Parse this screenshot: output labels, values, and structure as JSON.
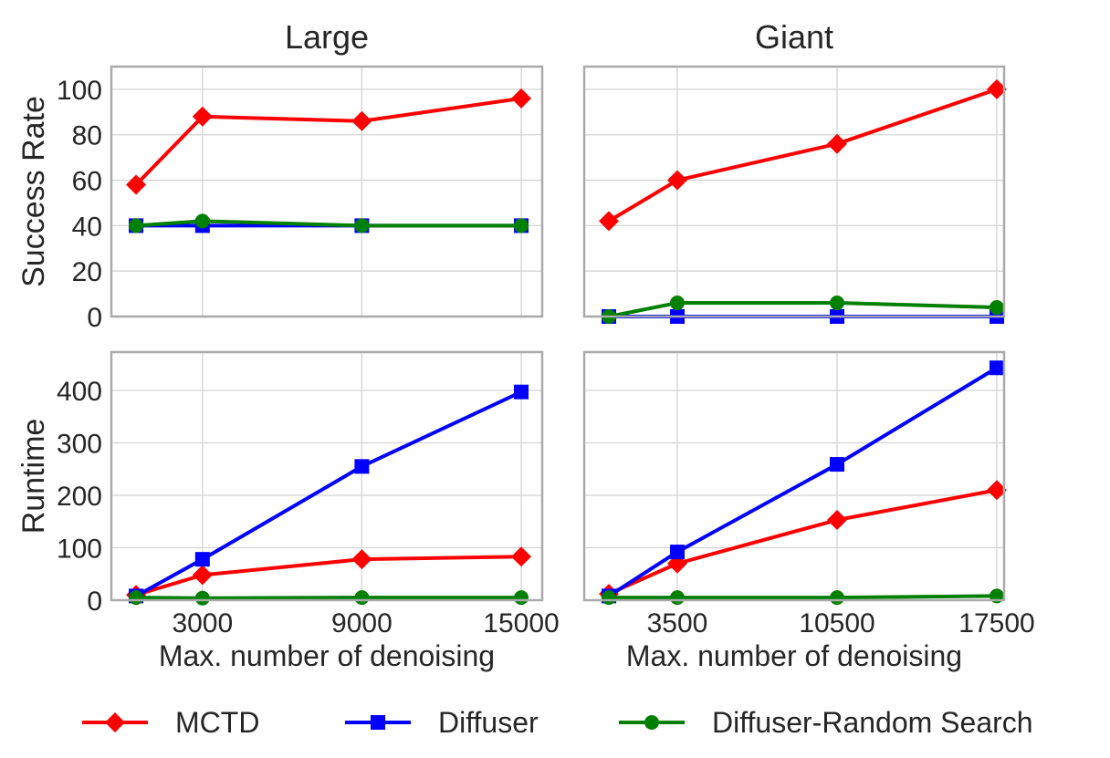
{
  "chart_data": [
    {
      "type": "line",
      "title": "Large",
      "ylabel": "Success Rate",
      "xlabel": "",
      "x": [
        500,
        3000,
        9000,
        15000
      ],
      "xticks": [
        "3000",
        "9000",
        "15000"
      ],
      "xtick_values": [
        3000,
        9000,
        15000
      ],
      "yticks": [
        "0",
        "20",
        "40",
        "60",
        "80",
        "100"
      ],
      "ylim": [
        0,
        110
      ],
      "xlim": [
        -430,
        15790
      ],
      "grid": true,
      "series": [
        {
          "name": "MCTD",
          "values": [
            58,
            88,
            86,
            96
          ]
        },
        {
          "name": "Diffuser",
          "values": [
            40,
            40,
            40,
            40
          ]
        },
        {
          "name": "Diffuser-Random Search",
          "values": [
            40,
            42,
            40,
            40
          ]
        }
      ]
    },
    {
      "type": "line",
      "title": "Giant",
      "ylabel": "",
      "xlabel": "",
      "x": [
        500,
        3500,
        10500,
        17500
      ],
      "xticks": [
        "3500",
        "10500",
        "17500"
      ],
      "xtick_values": [
        3500,
        10500,
        17500
      ],
      "yticks": [],
      "ylim": [
        0,
        110
      ],
      "xlim": [
        -580,
        17820
      ],
      "grid": true,
      "series": [
        {
          "name": "MCTD",
          "values": [
            42,
            60,
            76,
            100
          ]
        },
        {
          "name": "Diffuser",
          "values": [
            0,
            0,
            0,
            0
          ]
        },
        {
          "name": "Diffuser-Random Search",
          "values": [
            0,
            6,
            6,
            4
          ]
        }
      ]
    },
    {
      "type": "line",
      "title": "",
      "ylabel": "Runtime",
      "xlabel": "Max. number of denoising",
      "x": [
        500,
        3000,
        9000,
        15000
      ],
      "xticks": [
        "3000",
        "9000",
        "15000"
      ],
      "xtick_values": [
        3000,
        9000,
        15000
      ],
      "yticks": [
        "0",
        "100",
        "200",
        "300",
        "400"
      ],
      "ylim": [
        0,
        473
      ],
      "xlim": [
        -430,
        15790
      ],
      "grid": true,
      "series": [
        {
          "name": "MCTD",
          "values": [
            10,
            48,
            78,
            83
          ]
        },
        {
          "name": "Diffuser",
          "values": [
            8,
            78,
            255,
            397
          ]
        },
        {
          "name": "Diffuser-Random Search",
          "values": [
            5,
            4,
            5,
            5
          ]
        }
      ]
    },
    {
      "type": "line",
      "title": "",
      "ylabel": "",
      "xlabel": "Max. number of denoising",
      "x": [
        500,
        3500,
        10500,
        17500
      ],
      "xticks": [
        "3500",
        "10500",
        "17500"
      ],
      "xtick_values": [
        3500,
        10500,
        17500
      ],
      "yticks": [],
      "ylim": [
        0,
        473
      ],
      "xlim": [
        -580,
        17820
      ],
      "grid": true,
      "series": [
        {
          "name": "MCTD",
          "values": [
            12,
            70,
            153,
            210
          ]
        },
        {
          "name": "Diffuser",
          "values": [
            8,
            92,
            259,
            443
          ]
        },
        {
          "name": "Diffuser-Random Search",
          "values": [
            5,
            5,
            5,
            8
          ]
        }
      ]
    }
  ],
  "legend": {
    "placement": "bottom",
    "entries": [
      {
        "label": "MCTD",
        "color": "#ff0000",
        "marker": "diamond"
      },
      {
        "label": "Diffuser",
        "color": "#0000ff",
        "marker": "square"
      },
      {
        "label": "Diffuser-Random Search",
        "color": "#008000",
        "marker": "circle"
      }
    ]
  },
  "colors": {
    "MCTD": "#ff0000",
    "Diffuser": "#0000ff",
    "Diffuser-Random Search": "#008000"
  }
}
